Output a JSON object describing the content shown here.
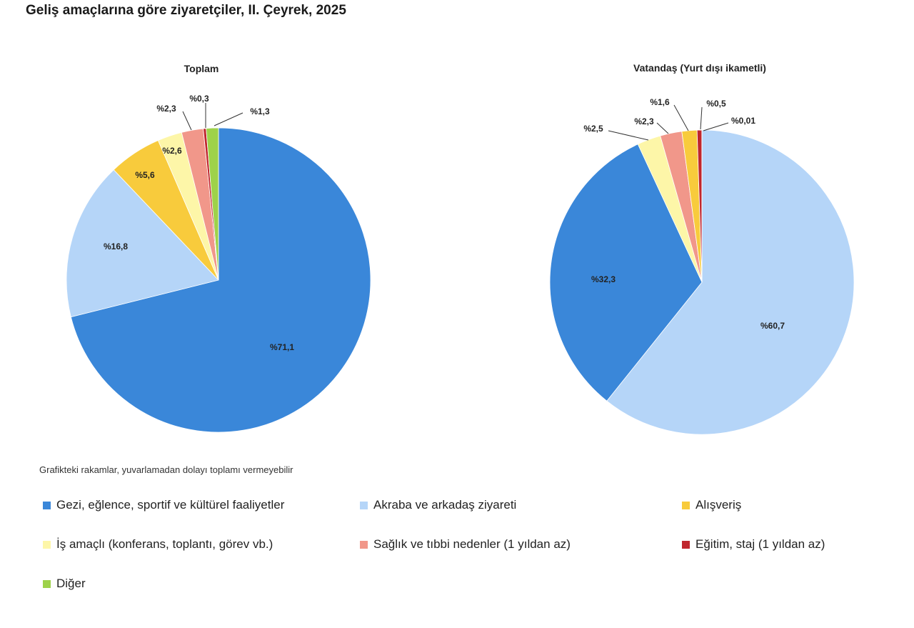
{
  "page": {
    "title": "Geliş amaçlarına göre ziyaretçiler, II. Çeyrek, 2025",
    "footnote": "Grafikteki rakamlar, yuvarlamadan dolayı toplamı vermeyebilir"
  },
  "legend": [
    {
      "name": "Gezi, eğlence, sportif ve kültürel faaliyetler",
      "color": "#3a87d9"
    },
    {
      "name": "Akraba ve arkadaş ziyareti",
      "color": "#b5d5f8"
    },
    {
      "name": "Alışveriş",
      "color": "#f8cb3c"
    },
    {
      "name": "İş amaçlı (konferans, toplantı, görev vb.)",
      "color": "#fdf6a8"
    },
    {
      "name": "Sağlık ve tıbbi nedenler (1 yıldan az)",
      "color": "#f1978a"
    },
    {
      "name": "Eğitim, staj (1 yıldan az)",
      "color": "#c0262d"
    },
    {
      "name": "Diğer",
      "color": "#9ed24a"
    }
  ],
  "chart_data": [
    {
      "type": "pie",
      "title": "Toplam",
      "start_angle_deg": 0,
      "direction": "clockwise",
      "slices": [
        {
          "category": "Gezi, eğlence, sportif ve kültürel faaliyetler",
          "value": 71.1,
          "label": "%71,1",
          "color": "#3a87d9"
        },
        {
          "category": "Akraba ve arkadaş ziyareti",
          "value": 16.8,
          "label": "%16,8",
          "color": "#b5d5f8"
        },
        {
          "category": "Alışveriş",
          "value": 5.6,
          "label": "%5,6",
          "color": "#f8cb3c"
        },
        {
          "category": "İş amaçlı (konferans, toplantı, görev vb.)",
          "value": 2.6,
          "label": "%2,6",
          "color": "#fdf6a8"
        },
        {
          "category": "Sağlık ve tıbbi nedenler (1 yıldan az)",
          "value": 2.3,
          "label": "%2,3",
          "color": "#f1978a"
        },
        {
          "category": "Eğitim, staj (1 yıldan az)",
          "value": 0.3,
          "label": "%0,3",
          "color": "#c0262d"
        },
        {
          "category": "Diğer",
          "value": 1.3,
          "label": "%1,3",
          "color": "#9ed24a"
        }
      ]
    },
    {
      "type": "pie",
      "title": "Vatandaş (Yurt dışı ikametli)",
      "start_angle_deg": 0,
      "direction": "clockwise",
      "slices": [
        {
          "category": "Akraba ve arkadaş ziyareti",
          "value": 60.7,
          "label": "%60,7",
          "color": "#b5d5f8"
        },
        {
          "category": "Gezi, eğlence, sportif ve kültürel faaliyetler",
          "value": 32.3,
          "label": "%32,3",
          "color": "#3a87d9"
        },
        {
          "category": "İş amaçlı (konferans, toplantı, görev vb.)",
          "value": 2.5,
          "label": "%2,5",
          "color": "#fdf6a8"
        },
        {
          "category": "Sağlık ve tıbbi nedenler (1 yıldan az)",
          "value": 2.3,
          "label": "%2,3",
          "color": "#f1978a"
        },
        {
          "category": "Alışveriş",
          "value": 1.6,
          "label": "%1,6",
          "color": "#f8cb3c"
        },
        {
          "category": "Eğitim, staj (1 yıldan az)",
          "value": 0.5,
          "label": "%0,5",
          "color": "#c0262d"
        },
        {
          "category": "Diğer",
          "value": 0.01,
          "label": "%0,01",
          "color": "#9ed24a"
        }
      ]
    }
  ]
}
